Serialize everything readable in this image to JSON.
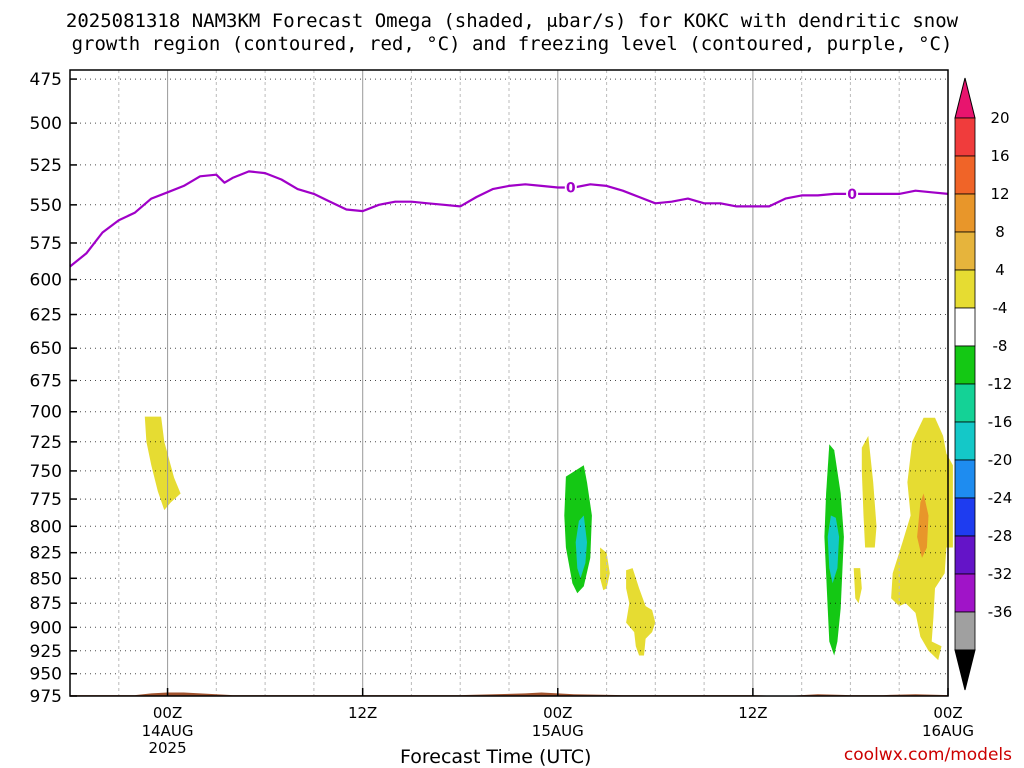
{
  "header": {
    "title_line1": "2025081318 NAM3KM Forecast Omega (shaded, μbar/s) for KOKC with dendritic snow",
    "title_line2": "growth region (contoured, red, °C) and freezing level (contoured, purple, °C)"
  },
  "footer": {
    "xlabel": "Forecast Time (UTC)",
    "credit": "coolwx.com/models"
  },
  "chart_data": {
    "type": "heatmap",
    "title": "2025081318 NAM3KM Forecast Omega (shaded, μbar/s) for KOKC with dendritic snow growth region (contoured, red, °C) and freezing level (contoured, purple, °C)",
    "xlabel": "Forecast Time (UTC)",
    "ylabel": "",
    "xlim_hours_from_init": [
      0,
      54
    ],
    "ylim_mb": [
      975,
      470
    ],
    "y_ticks": [
      475,
      500,
      525,
      550,
      575,
      600,
      625,
      650,
      675,
      700,
      725,
      750,
      775,
      800,
      825,
      850,
      875,
      900,
      925,
      950,
      975
    ],
    "x_ticks": [
      {
        "hour": 6,
        "label": "00Z",
        "sub1": "14AUG",
        "sub2": "2025"
      },
      {
        "hour": 18,
        "label": "12Z",
        "sub1": "",
        "sub2": ""
      },
      {
        "hour": 30,
        "label": "00Z",
        "sub1": "15AUG",
        "sub2": ""
      },
      {
        "hour": 42,
        "label": "12Z",
        "sub1": "",
        "sub2": ""
      },
      {
        "hour": 54,
        "label": "00Z",
        "sub1": "16AUG",
        "sub2": ""
      }
    ],
    "grid": true,
    "colorbar": {
      "position": "right",
      "labels": [
        "20",
        "16",
        "12",
        "8",
        "4",
        "-4",
        "-8",
        "-12",
        "-16",
        "-20",
        "-24",
        "-28",
        "-32",
        "-36"
      ],
      "colors": [
        "#e8146e",
        "#f03c3c",
        "#f06428",
        "#e8962a",
        "#e6b43c",
        "#e6dc32",
        "#ffffff",
        "#14c814",
        "#14d296",
        "#14c8c8",
        "#1e8cf0",
        "#1e3cf0",
        "#6414c8",
        "#a014c8",
        "#a0a0a0",
        "#000000"
      ]
    },
    "freezing_level": {
      "label": "0",
      "label_hours": [
        30.8,
        48.1
      ],
      "color": "#a000c8",
      "hours": [
        0,
        1,
        2,
        3,
        4,
        5,
        6,
        7,
        8,
        9,
        9.5,
        10,
        11,
        12,
        13,
        14,
        15,
        16,
        17,
        18,
        19,
        20,
        21,
        22,
        23,
        24,
        25,
        26,
        27,
        28,
        29,
        30,
        31,
        32,
        33,
        34,
        35,
        36,
        37,
        38,
        39,
        40,
        41,
        42,
        43,
        44,
        45,
        46,
        47,
        48,
        49,
        50,
        51,
        52,
        53,
        54
      ],
      "mb": [
        591,
        582,
        568,
        560,
        555,
        546,
        542,
        538,
        532,
        531,
        536,
        533,
        529,
        530,
        534,
        540,
        543,
        548,
        553,
        554,
        550,
        548,
        548,
        549,
        550,
        551,
        545,
        540,
        538,
        537,
        538,
        539,
        539,
        537,
        538,
        541,
        545,
        549,
        548,
        546,
        549,
        549,
        551,
        551,
        551,
        546,
        544,
        544,
        543,
        543,
        543,
        543,
        543,
        541,
        542,
        543
      ]
    },
    "omega_regions": [
      {
        "omega": 5,
        "points": [
          [
            4.6,
            704
          ],
          [
            5.6,
            704
          ],
          [
            5.8,
            725
          ],
          [
            6.4,
            756
          ],
          [
            6.8,
            770
          ],
          [
            6.2,
            778
          ],
          [
            5.8,
            785
          ],
          [
            5.4,
            768
          ],
          [
            5.0,
            745
          ],
          [
            4.7,
            725
          ]
        ]
      },
      {
        "omega": -6,
        "points": [
          [
            30.5,
            755
          ],
          [
            31.6,
            745
          ],
          [
            31.8,
            760
          ],
          [
            32.1,
            790
          ],
          [
            32.0,
            830
          ],
          [
            31.6,
            858
          ],
          [
            31.2,
            865
          ],
          [
            30.9,
            855
          ],
          [
            30.5,
            820
          ],
          [
            30.4,
            790
          ]
        ]
      },
      {
        "omega": -12,
        "points": [
          [
            31.3,
            795
          ],
          [
            31.6,
            790
          ],
          [
            31.8,
            815
          ],
          [
            31.7,
            835
          ],
          [
            31.4,
            850
          ],
          [
            31.2,
            840
          ],
          [
            31.1,
            815
          ]
        ]
      },
      {
        "omega": 5,
        "points": [
          [
            32.6,
            820
          ],
          [
            33.0,
            825
          ],
          [
            33.2,
            845
          ],
          [
            33.0,
            860
          ],
          [
            32.8,
            862
          ],
          [
            32.6,
            850
          ]
        ]
      },
      {
        "omega": 5,
        "points": [
          [
            34.2,
            842
          ],
          [
            34.6,
            840
          ],
          [
            35.0,
            860
          ],
          [
            35.4,
            878
          ],
          [
            35.8,
            882
          ],
          [
            36.0,
            895
          ],
          [
            35.8,
            905
          ],
          [
            35.4,
            912
          ],
          [
            35.3,
            930
          ],
          [
            35.0,
            930
          ],
          [
            34.8,
            920
          ],
          [
            34.7,
            905
          ],
          [
            34.2,
            895
          ],
          [
            34.4,
            875
          ],
          [
            34.2,
            860
          ]
        ]
      },
      {
        "omega": -6,
        "points": [
          [
            46.7,
            727
          ],
          [
            47.0,
            732
          ],
          [
            47.4,
            770
          ],
          [
            47.6,
            810
          ],
          [
            47.4,
            880
          ],
          [
            47.2,
            915
          ],
          [
            47.0,
            930
          ],
          [
            46.7,
            915
          ],
          [
            46.6,
            880
          ],
          [
            46.4,
            810
          ],
          [
            46.5,
            770
          ]
        ]
      },
      {
        "omega": -12,
        "points": [
          [
            46.8,
            790
          ],
          [
            47.1,
            792
          ],
          [
            47.3,
            810
          ],
          [
            47.2,
            840
          ],
          [
            46.9,
            855
          ],
          [
            46.7,
            840
          ],
          [
            46.6,
            810
          ]
        ]
      },
      {
        "omega": 5,
        "points": [
          [
            48.7,
            730
          ],
          [
            49.1,
            720
          ],
          [
            49.4,
            760
          ],
          [
            49.6,
            800
          ],
          [
            49.5,
            820
          ],
          [
            48.9,
            820
          ],
          [
            48.8,
            790
          ],
          [
            48.7,
            750
          ]
        ]
      },
      {
        "omega": 5,
        "points": [
          [
            48.2,
            840
          ],
          [
            48.6,
            840
          ],
          [
            48.7,
            860
          ],
          [
            48.5,
            875
          ],
          [
            48.3,
            870
          ]
        ]
      },
      {
        "omega": 5,
        "points": [
          [
            51.8,
            725
          ],
          [
            52.5,
            705
          ],
          [
            53.2,
            705
          ],
          [
            53.7,
            720
          ],
          [
            53.9,
            735
          ],
          [
            54.3,
            745
          ],
          [
            54.3,
            820
          ],
          [
            53.9,
            820
          ],
          [
            53.8,
            845
          ],
          [
            53.2,
            860
          ],
          [
            53.1,
            890
          ],
          [
            53.0,
            915
          ],
          [
            53.6,
            920
          ],
          [
            53.4,
            935
          ],
          [
            52.8,
            925
          ],
          [
            52.3,
            910
          ],
          [
            52.0,
            885
          ],
          [
            51.4,
            875
          ],
          [
            51.0,
            878
          ],
          [
            50.5,
            870
          ],
          [
            50.6,
            845
          ],
          [
            51.2,
            815
          ],
          [
            51.7,
            790
          ],
          [
            51.5,
            760
          ]
        ]
      },
      {
        "omega": 9,
        "points": [
          [
            52.3,
            778
          ],
          [
            52.5,
            770
          ],
          [
            52.8,
            790
          ],
          [
            52.7,
            820
          ],
          [
            52.4,
            830
          ],
          [
            52.1,
            810
          ]
        ]
      }
    ],
    "terrain_surface": {
      "color": "#a0522d",
      "hours": [
        0,
        4,
        5,
        6,
        7,
        8,
        10,
        24,
        28,
        29,
        30,
        31,
        34,
        38,
        40,
        42,
        44,
        45,
        46,
        48,
        50,
        52,
        54
      ],
      "mb": [
        974,
        974,
        972,
        971,
        971,
        972,
        974,
        974,
        972,
        971,
        972,
        973,
        974,
        974,
        974,
        974,
        975,
        974,
        973,
        974,
        974,
        973,
        974
      ]
    }
  }
}
